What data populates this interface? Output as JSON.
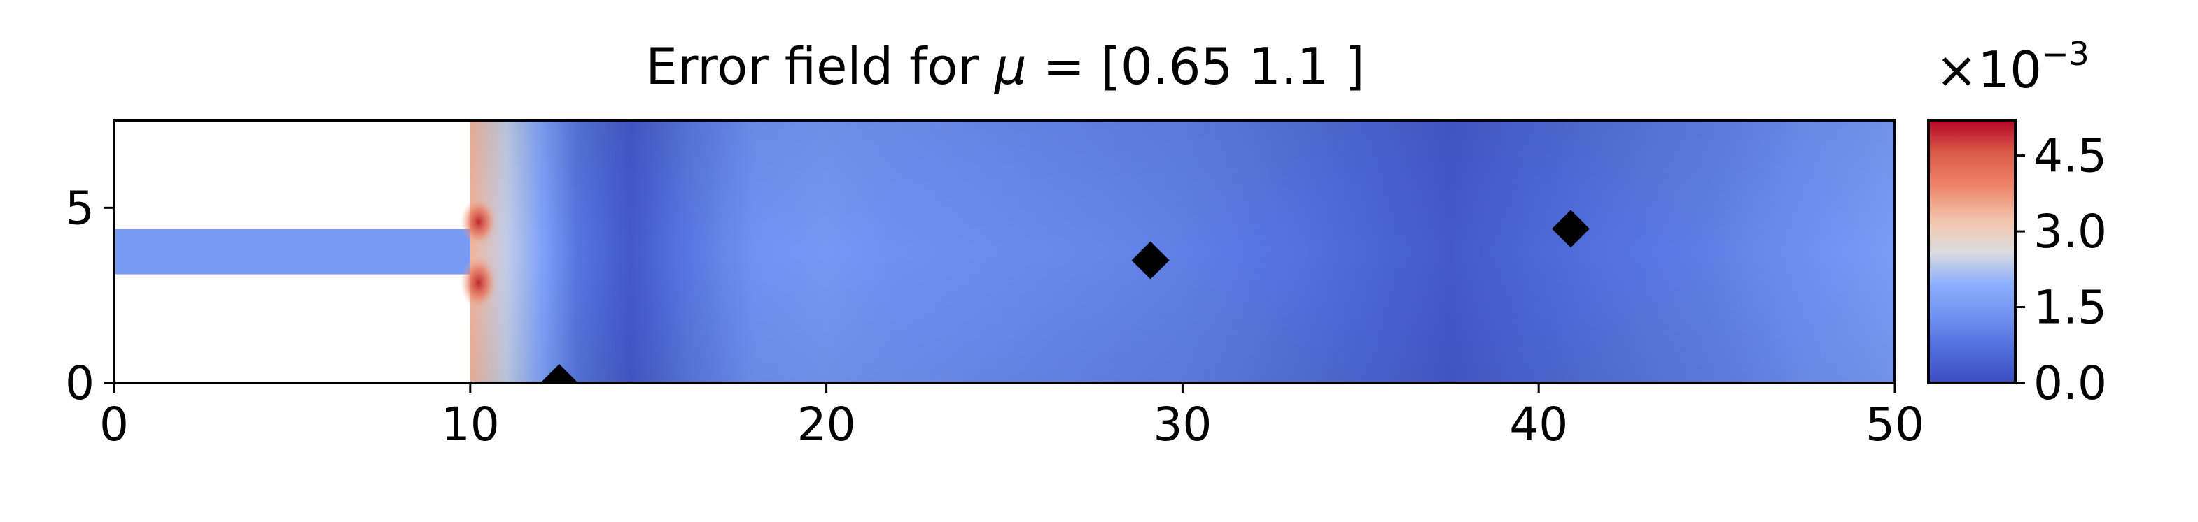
{
  "chart_data": {
    "type": "heatmap",
    "title": "Error field for μ = [0.65 1.1 ]",
    "title_parts": {
      "prefix": "Error field for ",
      "symbol": "μ",
      "suffix": " = [0.65 1.1 ]"
    },
    "xlim": [
      0,
      50
    ],
    "ylim": [
      0,
      7.5
    ],
    "x_ticks": [
      0,
      10,
      20,
      30,
      40,
      50
    ],
    "x_tick_labels": [
      "0",
      "10",
      "20",
      "30",
      "40",
      "50"
    ],
    "y_ticks": [
      0,
      5
    ],
    "y_tick_labels": [
      "0",
      "5"
    ],
    "domain_cutout": {
      "x_range": [
        0,
        10
      ],
      "channel_y_range": [
        3.1,
        4.4
      ]
    },
    "markers": [
      {
        "x": 12.5,
        "y": 0.0
      },
      {
        "x": 29.1,
        "y": 3.5
      },
      {
        "x": 40.9,
        "y": 4.4
      }
    ],
    "marker_color": "#000000",
    "colorbar": {
      "colormap": "coolwarm",
      "min": 0.0,
      "max": 0.0052,
      "ticks": [
        0.0,
        1.5,
        3.0,
        4.5
      ],
      "tick_labels": [
        "0.0",
        "1.5",
        "3.0",
        "4.5"
      ],
      "scale_base": "×10",
      "scale_exponent": "−3"
    },
    "error_profile_x": [
      [
        10,
        3.4
      ],
      [
        11,
        2.4
      ],
      [
        12,
        1.7
      ],
      [
        13,
        0.8
      ],
      [
        14.5,
        0.25
      ],
      [
        16,
        0.8
      ],
      [
        18,
        1.35
      ],
      [
        20,
        1.45
      ],
      [
        22,
        1.3
      ],
      [
        25,
        1.2
      ],
      [
        30,
        1.0
      ],
      [
        35,
        0.55
      ],
      [
        37.5,
        0.25
      ],
      [
        40,
        0.55
      ],
      [
        45,
        1.0
      ],
      [
        48,
        1.35
      ],
      [
        50,
        1.55
      ]
    ],
    "inlet_channel_error": 1.5,
    "corner_peak_error": 4.6,
    "colors": {
      "axes": "#000000",
      "background": "#ffffff",
      "cmap_low": "#3b4cc0",
      "cmap_mid": "#dddddd",
      "cmap_high": "#b40426"
    }
  }
}
